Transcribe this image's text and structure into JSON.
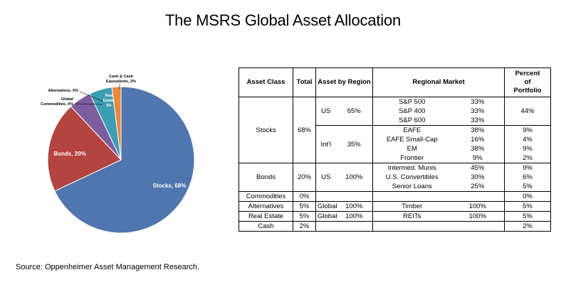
{
  "title": "The MSRS Global Asset Allocation",
  "source": "Source: Oppenheimer Asset Management Research.",
  "colors": {
    "stocks": "#4F76AE",
    "bonds": "#B3443F",
    "alternatives": "#7C5E9E",
    "real_estate": "#3D9DB3",
    "cash": "#E8893D"
  },
  "chart_data": [
    {
      "type": "pie",
      "title": "",
      "slices": [
        {
          "label": "Stocks, 68%",
          "value": 68
        },
        {
          "label": "Bonds, 20%",
          "value": 20
        },
        {
          "label": "Global Commodities, 0%",
          "value": 0
        },
        {
          "label": "Alternatives, 5%",
          "value": 5
        },
        {
          "label": "Real Estate, 5%",
          "value": 5
        },
        {
          "label": "Cash & Cash Equivalents, 2%",
          "value": 2
        }
      ],
      "label_lines": {
        "alternatives": "Alternatives, 5%",
        "commodities_1": "Global",
        "commodities_2": "Commodities, 0%",
        "real_estate_1": "Real",
        "real_estate_2": "Estate,",
        "real_estate_3": "5%",
        "cash_1": "Cash & Cash",
        "cash_2": "Equivalents, 2%"
      }
    },
    {
      "type": "table",
      "headers": {
        "asset_class": "Asset Class",
        "total": "Total",
        "region": "Asset by Region",
        "market": "Regional Market",
        "pct_1": "Percent",
        "pct_2": "of",
        "pct_3": "Portfolio"
      },
      "rows": {
        "stocks": {
          "name": "Stocks",
          "total": "68%",
          "us": {
            "region": "US",
            "pct": "65%",
            "portfolio": "44%",
            "markets": [
              {
                "name": "S&P 500",
                "pct": "33%"
              },
              {
                "name": "S&P 400",
                "pct": "33%"
              },
              {
                "name": "S&P 600",
                "pct": "33%"
              }
            ]
          },
          "intl": {
            "region": "Int'l",
            "pct": "35%",
            "markets": [
              {
                "name": "EAFE",
                "pct": "38%",
                "portfolio": "9%"
              },
              {
                "name": "EAFE Small-Cap",
                "pct": "16%",
                "portfolio": "4%"
              },
              {
                "name": "EM",
                "pct": "38%",
                "portfolio": "9%"
              },
              {
                "name": "Frontier",
                "pct": "9%",
                "portfolio": "2%"
              }
            ]
          }
        },
        "bonds": {
          "name": "Bonds",
          "total": "20%",
          "region": "US",
          "pct": "100%",
          "markets": [
            {
              "name": "Intermed. Munis",
              "pct": "45%",
              "portfolio": "9%"
            },
            {
              "name": "U.S. Convertibles",
              "pct": "30%",
              "portfolio": "6%"
            },
            {
              "name": "Senior Loans",
              "pct": "25%",
              "portfolio": "5%"
            }
          ]
        },
        "commodities": {
          "name": "Commodities",
          "total": "0%",
          "portfolio": "0%"
        },
        "alternatives": {
          "name": "Alternatives",
          "total": "5%",
          "region": "Global",
          "pct": "100%",
          "market": "Timber",
          "market_pct": "100%",
          "portfolio": "5%"
        },
        "real_estate": {
          "name": "Real Estate",
          "total": "5%",
          "region": "Global",
          "pct": "100%",
          "market": "REITs",
          "market_pct": "100%",
          "portfolio": "5%"
        },
        "cash": {
          "name": "Cash",
          "total": "2%",
          "portfolio": "2%"
        }
      }
    }
  ]
}
